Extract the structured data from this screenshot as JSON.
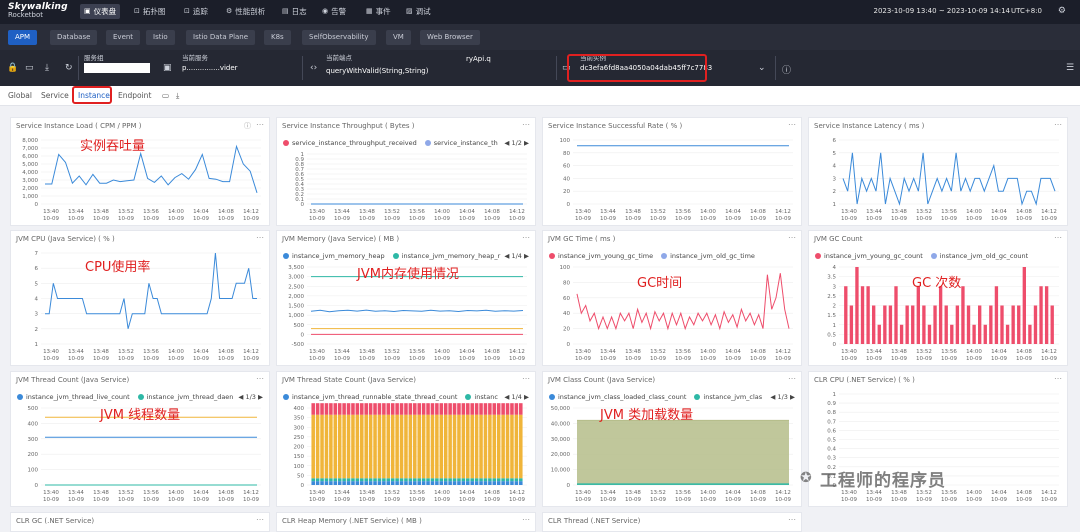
{
  "app": {
    "brand": "Skywalking",
    "sub": "Rocketbot"
  },
  "nav": [
    {
      "label": "仪表盘",
      "icon": "dashboard-icon",
      "glyph": "▣",
      "active": true
    },
    {
      "label": "拓扑图",
      "icon": "topology-icon",
      "glyph": "⊡"
    },
    {
      "label": "追踪",
      "icon": "trace-icon",
      "glyph": "⊡"
    },
    {
      "label": "性能剖析",
      "icon": "profile-icon",
      "glyph": "⚙"
    },
    {
      "label": "日志",
      "icon": "log-icon",
      "glyph": "▤"
    },
    {
      "label": "告警",
      "icon": "alarm-icon",
      "glyph": "◉"
    },
    {
      "label": "事件",
      "icon": "event-icon",
      "glyph": "▦"
    },
    {
      "label": "调试",
      "icon": "debug-icon",
      "glyph": "▨"
    }
  ],
  "timerange": "2023-10-09 13:40 ~ 2023-10-09 14:14",
  "timezone": "UTC+8:0",
  "layers": [
    "APM",
    "Database",
    "Event",
    "Istio",
    "Istio Data Plane",
    "K8s",
    "SelfObservability",
    "VM",
    "Web Browser"
  ],
  "selectors": {
    "service_label": "服务组",
    "current_service_label": "当前服务",
    "current_service_value": "p...............vider",
    "endpoint_label": "当前端点",
    "endpoint_value": "queryWithValid(String,String)",
    "endpoint_suffix": "ryApi.q",
    "instance_label": "当前实例",
    "instance_value": "dc3efa6fd8aa4050a04dab45ff7c7783"
  },
  "tabs": [
    "Global",
    "Service",
    "Instance",
    "Endpoint"
  ],
  "times": [
    "13:40",
    "13:44",
    "13:48",
    "13:52",
    "13:56",
    "14:00",
    "14:04",
    "14:08",
    "14:12"
  ],
  "date": "10-09",
  "colors": {
    "blue": "#3b8ad9",
    "red": "#ee4d6b",
    "orange": "#f0b53a",
    "teal": "#2eb8a6",
    "lavender": "#8fa8e8",
    "olive": "#b5bd8a",
    "redAnno": "#e02020"
  },
  "widgets": [
    {
      "id": "w1",
      "title": "Service Instance Load ( CPM / PPM )",
      "anno": "实例吞吐量",
      "info": true,
      "chart": {
        "type": "line",
        "yticks": [
          "8,000",
          "7,000",
          "6,000",
          "5,000",
          "4,000",
          "3,000",
          "2,000",
          "1,000",
          "0"
        ],
        "ymax": 8000,
        "series": [
          {
            "color": "blue",
            "values": [
              2500,
              2500,
              6200,
              5200,
              2600,
              3500,
              2400,
              3700,
              2600,
              2600,
              3000,
              2800,
              2900,
              3000,
              6300,
              3200,
              2700,
              3500,
              2400,
              3300,
              3800,
              3100,
              4300,
              6200,
              3200,
              3100,
              2800,
              2800,
              7200,
              5000,
              4100,
              1400
            ]
          }
        ]
      }
    },
    {
      "id": "w2",
      "title": "Service Instance Throughput ( Bytes )",
      "legend": [
        "service_instance_throughput_received",
        "service_instance_th"
      ],
      "lcolors": [
        "red",
        "lavender"
      ],
      "pager": "1/2",
      "chart": {
        "type": "line",
        "yticks": [
          "1",
          "0.9",
          "0.8",
          "0.7",
          "0.6",
          "0.5",
          "0.4",
          "0.3",
          "0.2",
          "0.1",
          "0"
        ],
        "ymax": 1,
        "series": [
          {
            "color": "blue",
            "values": [
              0,
              0,
              0,
              0,
              0,
              0,
              0,
              0,
              0,
              0,
              0,
              0,
              0,
              0,
              0,
              0
            ]
          }
        ]
      }
    },
    {
      "id": "w3",
      "title": "Service Instance Successful Rate ( % )",
      "chart": {
        "type": "line",
        "yticks": [
          "100",
          "80",
          "60",
          "40",
          "20",
          "0"
        ],
        "ymax": 110,
        "series": [
          {
            "color": "blue",
            "values": [
              100,
              100,
              100,
              100,
              100,
              100,
              100,
              100,
              100,
              100,
              100,
              100,
              100,
              100,
              100,
              100
            ]
          }
        ]
      }
    },
    {
      "id": "w4",
      "title": "Service Instance Latency ( ms )",
      "chart": {
        "type": "line",
        "yticks": [
          "6",
          "5",
          "4",
          "3",
          "2",
          "1"
        ],
        "ymin": 1,
        "ymax": 6,
        "series": [
          {
            "color": "blue",
            "values": [
              3,
              2,
              5,
              1,
              3,
              2,
              3,
              2,
              5,
              1,
              3,
              2,
              1,
              3,
              2,
              3,
              2,
              5,
              1,
              2,
              3,
              2,
              3,
              2,
              5,
              2,
              3,
              2,
              3,
              3,
              2,
              3,
              4,
              2,
              2,
              3,
              3,
              3,
              1,
              2,
              2,
              1,
              3,
              3,
              3,
              2
            ]
          }
        ]
      }
    },
    {
      "id": "w5",
      "title": "JVM CPU (Java Service) ( % )",
      "anno": "CPU使用率",
      "chart": {
        "type": "line",
        "yticks": [
          "7",
          "6",
          "5",
          "4",
          "3",
          "2",
          "1"
        ],
        "ymin": 1,
        "ymax": 7,
        "series": [
          {
            "color": "blue",
            "values": [
              3,
              3,
              5,
              4,
              4,
              4,
              4,
              4,
              4,
              4,
              3,
              3,
              3,
              3,
              3,
              3,
              3,
              3,
              3,
              4,
              2,
              3,
              3,
              3,
              3,
              5,
              4,
              4,
              3,
              3,
              3,
              3,
              3,
              3,
              3,
              3,
              3,
              3,
              3,
              3,
              4,
              7,
              4,
              4,
              4,
              4,
              5,
              5,
              5,
              6,
              4,
              4
            ]
          }
        ]
      }
    },
    {
      "id": "w6",
      "title": "JVM Memory (Java Service) ( MB )",
      "anno": "JVM内存使用情况",
      "legend": [
        "instance_jvm_memory_heap",
        "instance_jvm_memory_heap_r"
      ],
      "lcolors": [
        "blue",
        "teal"
      ],
      "pager": "1/4",
      "chart": {
        "type": "line",
        "yticks": [
          "3,500",
          "3,000",
          "2,500",
          "2,000",
          "1,500",
          "1,000",
          "500",
          "0",
          "-500"
        ],
        "ymin": -500,
        "ymax": 3500,
        "series": [
          {
            "color": "teal",
            "values": [
              3000,
              3000,
              3000,
              3000,
              3000,
              3000,
              3000,
              3000
            ]
          },
          {
            "color": "blue",
            "values": [
              1200,
              1250,
              1180,
              1230,
              1250,
              1210,
              1260,
              1200,
              1230,
              1190,
              1240,
              1220,
              1200,
              1250,
              1210,
              1230,
              1190,
              1240,
              1220,
              1250,
              1200,
              1230,
              1210,
              1240
            ]
          },
          {
            "color": "orange",
            "values": [
              300,
              300,
              300,
              300,
              300,
              300,
              300,
              300
            ]
          },
          {
            "color": "red",
            "values": [
              0,
              0,
              0,
              0,
              0,
              0,
              0,
              0
            ]
          }
        ]
      }
    },
    {
      "id": "w7",
      "title": "JVM GC Time ( ms )",
      "anno": "GC时间",
      "legend": [
        "instance_jvm_young_gc_time",
        "instance_jvm_old_gc_time"
      ],
      "lcolors": [
        "red",
        "lavender"
      ],
      "chart": {
        "type": "line",
        "yticks": [
          "100",
          "80",
          "60",
          "40",
          "20",
          "0"
        ],
        "ymax": 100,
        "series": [
          {
            "color": "red",
            "values": [
              65,
              40,
              50,
              30,
              40,
              20,
              35,
              20,
              35,
              20,
              40,
              30,
              40,
              20,
              45,
              28,
              40,
              20,
              42,
              30,
              40,
              20,
              40,
              25,
              40,
              20,
              35,
              25,
              40,
              30,
              40,
              25,
              38,
              20,
              42,
              28,
              38,
              22,
              45,
              30,
              40,
              25,
              38,
              20,
              90,
              45,
              60,
              92,
              45,
              20
            ]
          }
        ]
      }
    },
    {
      "id": "w8",
      "title": "JVM GC Count",
      "anno": "GC 次数",
      "legend": [
        "instance_jvm_young_gc_count",
        "instance_jvm_old_gc_count"
      ],
      "lcolors": [
        "red",
        "lavender"
      ],
      "chart": {
        "type": "bar",
        "yticks": [
          "4",
          "3.5",
          "3",
          "2.5",
          "2",
          "1.5",
          "1",
          "0.5",
          "0"
        ],
        "ymax": 4,
        "series": [
          {
            "color": "red",
            "values": [
              3,
              2,
              4,
              3,
              3,
              2,
              1,
              2,
              2,
              3,
              1,
              2,
              2,
              3,
              2,
              1,
              2,
              3,
              2,
              1,
              2,
              3,
              2,
              1,
              2,
              1,
              2,
              3,
              2,
              1,
              2,
              2,
              4,
              1,
              2,
              3,
              3,
              2
            ]
          }
        ]
      }
    },
    {
      "id": "w9",
      "title": "JVM Thread Count (Java Service)",
      "anno": "JVM 线程数量",
      "legend": [
        "instance_jvm_thread_live_count",
        "instance_jvm_thread_daen"
      ],
      "lcolors": [
        "blue",
        "teal"
      ],
      "pager": "1/3",
      "chart": {
        "type": "line",
        "yticks": [
          "500",
          "400",
          "300",
          "200",
          "100",
          "0"
        ],
        "ymax": 500,
        "series": [
          {
            "color": "orange",
            "values": [
              440,
              440,
              440,
              440,
              440,
              440,
              440,
              440
            ]
          },
          {
            "color": "blue",
            "values": [
              310,
              310,
              310,
              310,
              310,
              310,
              310,
              310
            ]
          },
          {
            "color": "teal",
            "values": [
              0,
              0,
              0,
              0,
              0,
              0,
              0,
              0
            ]
          }
        ]
      }
    },
    {
      "id": "w10",
      "title": "JVM Thread State Count (Java Service)",
      "legend": [
        "instance_jvm_thread_runnable_state_thread_count",
        "instanc"
      ],
      "lcolors": [
        "blue",
        "teal"
      ],
      "pager": "1/4",
      "chart": {
        "type": "stack",
        "yticks": [
          "400",
          "350",
          "300",
          "250",
          "200",
          "150",
          "100",
          "50",
          "0"
        ],
        "ymax": 400,
        "bars": 48,
        "stack": [
          {
            "color": "blue",
            "value": 20
          },
          {
            "color": "teal",
            "value": 15
          },
          {
            "color": "orange",
            "value": 330
          },
          {
            "color": "red",
            "value": 60
          }
        ]
      }
    },
    {
      "id": "w11",
      "title": "JVM Class Count (Java Service)",
      "anno": "JVM 类加载数量",
      "legend": [
        "instance_jvm_class_loaded_class_count",
        "instance_jvm_clas"
      ],
      "lcolors": [
        "blue",
        "teal"
      ],
      "pager": "1/3",
      "chart": {
        "type": "area",
        "yticks": [
          "50,000",
          "40,000",
          "30,000",
          "20,000",
          "10,000",
          "0"
        ],
        "ymax": 50000,
        "series": [
          {
            "color": "olive",
            "values": [
              42000,
              42000
            ]
          },
          {
            "color": "teal",
            "values": [
              700,
              700
            ]
          }
        ]
      }
    },
    {
      "id": "w12",
      "title": "CLR CPU (.NET Service) ( % )",
      "chart": {
        "type": "empty",
        "yticks": [
          "1",
          "0.9",
          "0.8",
          "0.7",
          "0.6",
          "0.5",
          "0.4",
          "0.3",
          "0.2",
          "0.1",
          "0"
        ],
        "ymax": 1
      }
    },
    {
      "id": "w13",
      "title": "CLR GC (.NET Service)"
    },
    {
      "id": "w14",
      "title": "CLR Heap Memory (.NET Service) ( MB )"
    },
    {
      "id": "w15",
      "title": "CLR Thread (.NET Service)"
    }
  ],
  "watermark": "工程师的程序员"
}
